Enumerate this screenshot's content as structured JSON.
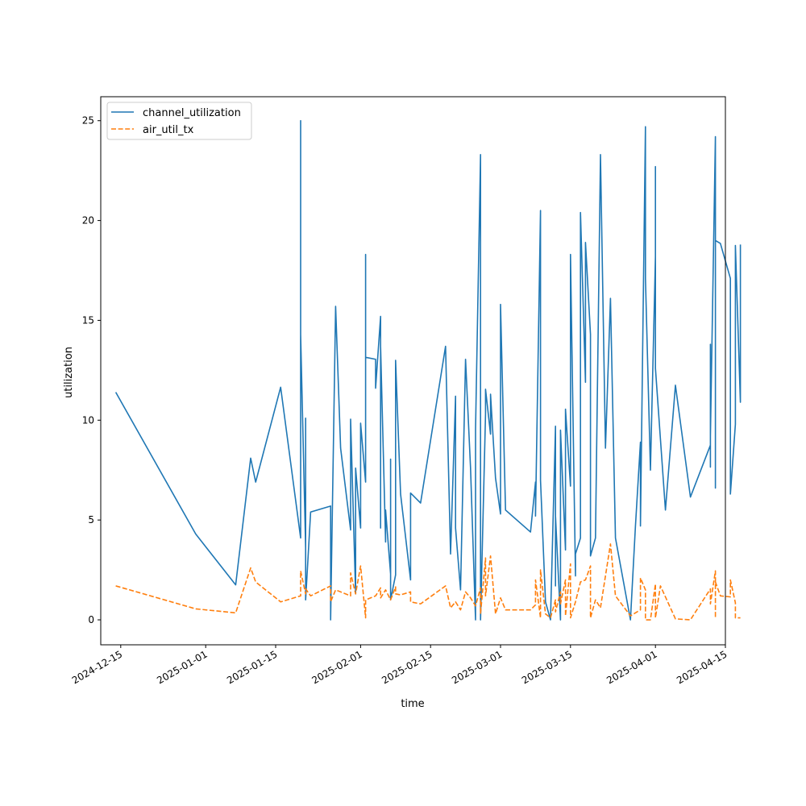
{
  "chart_data": {
    "type": "line",
    "title": "",
    "xlabel": "time",
    "ylabel": "utilization",
    "xlim": [
      "2024-12-11",
      "2025-04-15"
    ],
    "ylim": [
      -1.25,
      26.2
    ],
    "x_ticks": [
      "2024-12-15",
      "2025-01-01",
      "2025-01-15",
      "2025-02-01",
      "2025-02-15",
      "2025-03-01",
      "2025-03-15",
      "2025-04-01",
      "2025-04-15"
    ],
    "y_ticks": [
      0,
      5,
      10,
      15,
      20,
      25
    ],
    "grid": false,
    "legend_position": "top-left",
    "series": [
      {
        "name": "channel_utilization",
        "color": "#1f77b4",
        "dash": "solid",
        "points": [
          [
            "2024-12-14",
            11.4
          ],
          [
            "2024-12-30",
            4.3
          ],
          [
            "2025-01-07",
            1.75
          ],
          [
            "2025-01-10",
            8.1
          ],
          [
            "2025-01-11",
            6.9
          ],
          [
            "2025-01-16",
            11.65
          ],
          [
            "2025-01-20",
            4.1
          ],
          [
            "2025-01-20",
            25.0
          ],
          [
            "2025-01-20",
            14.3
          ],
          [
            "2025-01-21",
            3.6
          ],
          [
            "2025-01-21",
            10.1
          ],
          [
            "2025-01-21",
            1.0
          ],
          [
            "2025-01-22",
            5.4
          ],
          [
            "2025-01-26",
            5.7
          ],
          [
            "2025-01-26",
            0.0
          ],
          [
            "2025-01-27",
            15.7
          ],
          [
            "2025-01-28",
            8.6
          ],
          [
            "2025-01-30",
            4.5
          ],
          [
            "2025-01-30",
            10.05
          ],
          [
            "2025-01-31",
            1.3
          ],
          [
            "2025-01-31",
            7.6
          ],
          [
            "2025-02-01",
            4.6
          ],
          [
            "2025-02-01",
            9.85
          ],
          [
            "2025-02-02",
            6.9
          ],
          [
            "2025-02-02",
            18.3
          ],
          [
            "2025-02-02",
            13.15
          ],
          [
            "2025-02-04",
            13.05
          ],
          [
            "2025-02-04",
            11.6
          ],
          [
            "2025-02-05",
            15.2
          ],
          [
            "2025-02-05",
            4.6
          ],
          [
            "2025-02-05",
            13.7
          ],
          [
            "2025-02-06",
            3.9
          ],
          [
            "2025-02-06",
            5.5
          ],
          [
            "2025-02-07",
            2.3
          ],
          [
            "2025-02-07",
            8.05
          ],
          [
            "2025-02-07",
            1.0
          ],
          [
            "2025-02-08",
            2.25
          ],
          [
            "2025-02-08",
            13.0
          ],
          [
            "2025-02-09",
            6.3
          ],
          [
            "2025-02-11",
            2.0
          ],
          [
            "2025-02-11",
            6.35
          ],
          [
            "2025-02-13",
            5.85
          ],
          [
            "2025-02-18",
            13.7
          ],
          [
            "2025-02-19",
            3.3
          ],
          [
            "2025-02-20",
            11.2
          ],
          [
            "2025-02-20",
            4.6
          ],
          [
            "2025-02-21",
            1.5
          ],
          [
            "2025-02-22",
            13.05
          ],
          [
            "2025-02-23",
            7.6
          ],
          [
            "2025-02-24",
            0.0
          ],
          [
            "2025-02-24",
            9.55
          ],
          [
            "2025-02-25",
            23.3
          ],
          [
            "2025-02-25",
            0.0
          ],
          [
            "2025-02-26",
            10.3
          ],
          [
            "2025-02-26",
            11.55
          ],
          [
            "2025-02-27",
            9.3
          ],
          [
            "2025-02-27",
            11.3
          ],
          [
            "2025-02-28",
            7.1
          ],
          [
            "2025-03-01",
            5.3
          ],
          [
            "2025-03-01",
            15.8
          ],
          [
            "2025-03-02",
            5.5
          ],
          [
            "2025-03-07",
            4.4
          ],
          [
            "2025-03-08",
            6.9
          ],
          [
            "2025-03-08",
            5.2
          ],
          [
            "2025-03-09",
            20.5
          ],
          [
            "2025-03-09",
            7.0
          ],
          [
            "2025-03-10",
            0.9
          ],
          [
            "2025-03-11",
            0.0
          ],
          [
            "2025-03-12",
            9.7
          ],
          [
            "2025-03-12",
            1.7
          ],
          [
            "2025-03-12",
            5.2
          ],
          [
            "2025-03-13",
            0.0
          ],
          [
            "2025-03-13",
            9.5
          ],
          [
            "2025-03-14",
            3.5
          ],
          [
            "2025-03-14",
            10.55
          ],
          [
            "2025-03-15",
            6.7
          ],
          [
            "2025-03-15",
            18.3
          ],
          [
            "2025-03-16",
            2.2
          ],
          [
            "2025-03-16",
            3.3
          ],
          [
            "2025-03-17",
            4.1
          ],
          [
            "2025-03-17",
            20.4
          ],
          [
            "2025-03-18",
            11.9
          ],
          [
            "2025-03-18",
            18.9
          ],
          [
            "2025-03-19",
            14.3
          ],
          [
            "2025-03-19",
            3.2
          ],
          [
            "2025-03-20",
            4.1
          ],
          [
            "2025-03-21",
            23.3
          ],
          [
            "2025-03-22",
            8.6
          ],
          [
            "2025-03-23",
            16.1
          ],
          [
            "2025-03-24",
            4.1
          ],
          [
            "2025-03-27",
            0.0
          ],
          [
            "2025-03-28",
            4.7
          ],
          [
            "2025-03-29",
            8.9
          ],
          [
            "2025-03-29",
            4.7
          ],
          [
            "2025-03-30",
            24.7
          ],
          [
            "2025-03-30",
            17.1
          ],
          [
            "2025-03-31",
            7.5
          ],
          [
            "2025-04-01",
            18.2
          ],
          [
            "2025-04-01",
            22.7
          ],
          [
            "2025-04-01",
            12.6
          ],
          [
            "2025-04-03",
            5.5
          ],
          [
            "2025-04-05",
            11.75
          ],
          [
            "2025-04-08",
            6.15
          ],
          [
            "2025-04-12",
            8.75
          ],
          [
            "2025-04-12",
            7.65
          ],
          [
            "2025-04-12",
            13.8
          ],
          [
            "2025-04-12",
            9.2
          ],
          [
            "2025-04-13",
            24.2
          ],
          [
            "2025-04-13",
            6.6
          ],
          [
            "2025-04-13",
            19.0
          ],
          [
            "2025-04-14",
            18.85
          ],
          [
            "2025-04-16",
            17.1
          ],
          [
            "2025-04-16",
            6.3
          ],
          [
            "2025-04-17",
            9.8
          ],
          [
            "2025-04-17",
            18.75
          ],
          [
            "2025-04-18",
            10.9
          ],
          [
            "2025-04-18",
            18.8
          ]
        ]
      },
      {
        "name": "air_util_tx",
        "color": "#ff7f0e",
        "dash": "dashed",
        "points": [
          [
            "2024-12-14",
            1.7
          ],
          [
            "2024-12-30",
            0.55
          ],
          [
            "2025-01-07",
            0.35
          ],
          [
            "2025-01-10",
            2.6
          ],
          [
            "2025-01-11",
            1.9
          ],
          [
            "2025-01-16",
            0.9
          ],
          [
            "2025-01-20",
            1.2
          ],
          [
            "2025-01-20",
            2.45
          ],
          [
            "2025-01-21",
            1.3
          ],
          [
            "2025-01-21",
            1.55
          ],
          [
            "2025-01-22",
            1.2
          ],
          [
            "2025-01-26",
            1.7
          ],
          [
            "2025-01-26",
            0.9
          ],
          [
            "2025-01-27",
            1.5
          ],
          [
            "2025-01-30",
            1.2
          ],
          [
            "2025-01-30",
            2.35
          ],
          [
            "2025-01-31",
            1.3
          ],
          [
            "2025-02-01",
            2.7
          ],
          [
            "2025-02-02",
            0.1
          ],
          [
            "2025-02-02",
            1.0
          ],
          [
            "2025-02-04",
            1.2
          ],
          [
            "2025-02-05",
            1.6
          ],
          [
            "2025-02-05",
            1.1
          ],
          [
            "2025-02-06",
            1.5
          ],
          [
            "2025-02-07",
            1.0
          ],
          [
            "2025-02-08",
            1.65
          ],
          [
            "2025-02-08",
            1.3
          ],
          [
            "2025-02-09",
            1.25
          ],
          [
            "2025-02-11",
            1.4
          ],
          [
            "2025-02-11",
            0.9
          ],
          [
            "2025-02-13",
            0.8
          ],
          [
            "2025-02-18",
            1.7
          ],
          [
            "2025-02-19",
            0.6
          ],
          [
            "2025-02-20",
            0.9
          ],
          [
            "2025-02-21",
            0.5
          ],
          [
            "2025-02-22",
            1.4
          ],
          [
            "2025-02-23",
            1.1
          ],
          [
            "2025-02-24",
            0.7
          ],
          [
            "2025-02-25",
            1.6
          ],
          [
            "2025-02-25",
            0.3
          ],
          [
            "2025-02-26",
            3.1
          ],
          [
            "2025-02-26",
            1.2
          ],
          [
            "2025-02-27",
            3.2
          ],
          [
            "2025-02-28",
            0.3
          ],
          [
            "2025-03-01",
            1.1
          ],
          [
            "2025-03-02",
            0.5
          ],
          [
            "2025-03-07",
            0.5
          ],
          [
            "2025-03-08",
            0.75
          ],
          [
            "2025-03-08",
            2.0
          ],
          [
            "2025-03-09",
            0.1
          ],
          [
            "2025-03-09",
            2.5
          ],
          [
            "2025-03-10",
            0.3
          ],
          [
            "2025-03-11",
            0.1
          ],
          [
            "2025-03-12",
            1.0
          ],
          [
            "2025-03-12",
            0.4
          ],
          [
            "2025-03-13",
            1.4
          ],
          [
            "2025-03-13",
            0.8
          ],
          [
            "2025-03-14",
            2.0
          ],
          [
            "2025-03-14",
            0.2
          ],
          [
            "2025-03-15",
            2.8
          ],
          [
            "2025-03-15",
            0.1
          ],
          [
            "2025-03-16",
            0.9
          ],
          [
            "2025-03-17",
            1.9
          ],
          [
            "2025-03-18",
            2.0
          ],
          [
            "2025-03-19",
            2.7
          ],
          [
            "2025-03-19",
            0.1
          ],
          [
            "2025-03-20",
            1.0
          ],
          [
            "2025-03-21",
            0.6
          ],
          [
            "2025-03-23",
            3.8
          ],
          [
            "2025-03-24",
            1.2
          ],
          [
            "2025-03-27",
            0.2
          ],
          [
            "2025-03-29",
            0.5
          ],
          [
            "2025-03-29",
            2.1
          ],
          [
            "2025-03-30",
            1.5
          ],
          [
            "2025-03-30",
            0.0
          ],
          [
            "2025-03-31",
            0.0
          ],
          [
            "2025-04-01",
            1.8
          ],
          [
            "2025-04-01",
            0.1
          ],
          [
            "2025-04-02",
            1.7
          ],
          [
            "2025-04-05",
            0.05
          ],
          [
            "2025-04-08",
            0.0
          ],
          [
            "2025-04-12",
            1.55
          ],
          [
            "2025-04-12",
            0.8
          ],
          [
            "2025-04-13",
            2.45
          ],
          [
            "2025-04-13",
            0.1
          ],
          [
            "2025-04-13",
            1.9
          ],
          [
            "2025-04-14",
            1.2
          ],
          [
            "2025-04-16",
            1.15
          ],
          [
            "2025-04-16",
            2.0
          ],
          [
            "2025-04-17",
            0.85
          ],
          [
            "2025-04-17",
            0.1
          ],
          [
            "2025-04-18",
            0.1
          ]
        ]
      }
    ]
  }
}
